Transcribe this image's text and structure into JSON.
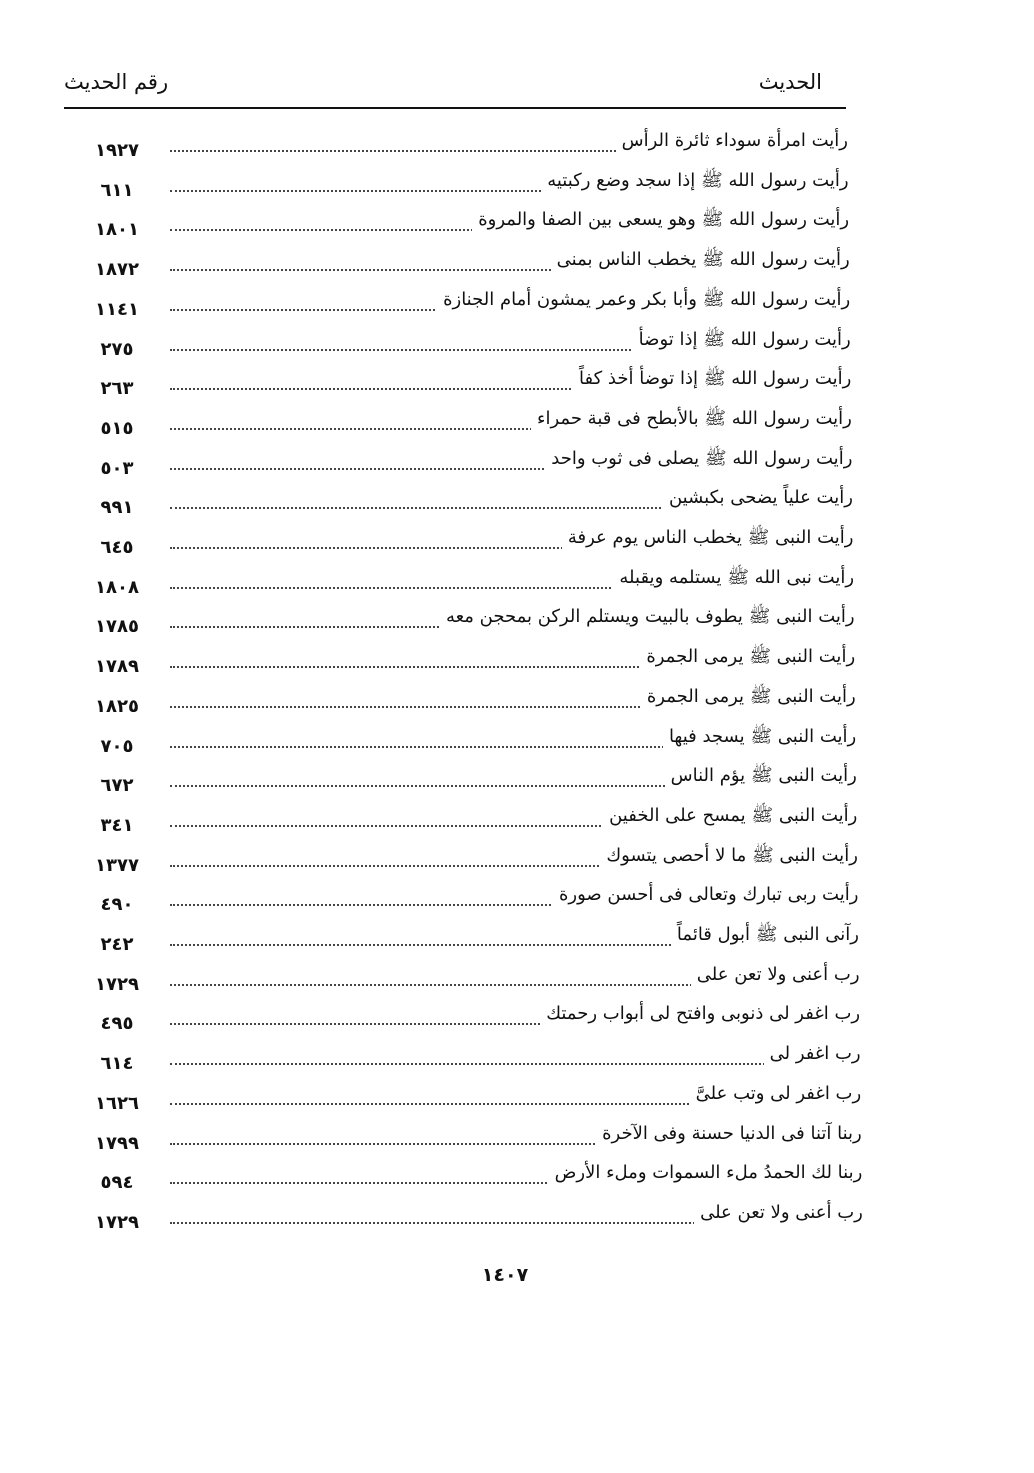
{
  "header": {
    "hadith_label": "الحديث",
    "number_label": "رقم الحديث"
  },
  "entries": [
    {
      "text": "رأيت امرأة سوداء ثائرة الرأس",
      "number": "١٩٢٧"
    },
    {
      "text": "رأيت رسول الله ﷺ إذا سجد وضع ركبتيه",
      "number": "٦١١"
    },
    {
      "text": "رأيت رسول الله ﷺ وهو يسعى بين الصفا والمروة",
      "number": "١٨٠١"
    },
    {
      "text": "رأيت رسول الله ﷺ يخطب الناس بمنى",
      "number": "١٨٧٢"
    },
    {
      "text": "رأيت رسول الله ﷺ وأبا بكر وعمر يمشون أمام الجنازة",
      "number": "١١٤١"
    },
    {
      "text": "رأيت رسول الله ﷺ إذا توضأ",
      "number": "٢٧٥"
    },
    {
      "text": "رأيت رسول الله ﷺ إذا توضأ أخذ كفاً",
      "number": "٢٦٣"
    },
    {
      "text": "رأيت رسول الله ﷺ بالأبطح فى قبة حمراء",
      "number": "٥١٥"
    },
    {
      "text": "رأيت رسول الله ﷺ يصلى فى ثوب واحد",
      "number": "٥٠٣"
    },
    {
      "text": "رأيت علياً يضحى بكبشين",
      "number": "٩٩١"
    },
    {
      "text": "رأيت النبى ﷺ يخطب الناس يوم عرفة",
      "number": "٦٤٥"
    },
    {
      "text": "رأيت نبى الله ﷺ يستلمه ويقبله",
      "number": "١٨٠٨"
    },
    {
      "text": "رأيت النبى ﷺ يطوف بالبيت ويستلم الركن بمحجن معه",
      "number": "١٧٨٥"
    },
    {
      "text": "رأيت النبى ﷺ يرمى الجمرة",
      "number": "١٧٨٩"
    },
    {
      "text": "رأيت النبى ﷺ يرمى الجمرة",
      "number": "١٨٢٥"
    },
    {
      "text": "رأيت النبى ﷺ يسجد فيها",
      "number": "٧٠٥"
    },
    {
      "text": "رأيت النبى ﷺ يؤم الناس",
      "number": "٦٧٢"
    },
    {
      "text": "رأيت النبى ﷺ يمسح على الخفين",
      "number": "٣٤١"
    },
    {
      "text": "رأيت النبى ﷺ ما لا أحصى يتسوك",
      "number": "١٣٧٧"
    },
    {
      "text": "رأيت ربى تبارك وتعالى فى أحسن صورة",
      "number": "٤٩٠"
    },
    {
      "text": "رآنى النبى ﷺ أبول قائماً",
      "number": "٢٤٢"
    },
    {
      "text": "رب أعنى ولا تعن على",
      "number": "١٧٢٩"
    },
    {
      "text": "رب اغفر لى ذنوبى وافتح لى أبواب رحمتك",
      "number": "٤٩٥"
    },
    {
      "text": "رب اغفر لى",
      "number": "٦١٤"
    },
    {
      "text": "رب اغفر لى وتب علىَّ",
      "number": "١٦٢٦"
    },
    {
      "text": "ربنا آتنا فى الدنيا حسنة وفى الآخرة",
      "number": "١٧٩٩"
    },
    {
      "text": "ربنا لك الحمدُ ملء السموات وملء الأرض",
      "number": "٥٩٤"
    },
    {
      "text": "رب أعنى ولا تعن على",
      "number": "١٧٢٩"
    }
  ],
  "footer": {
    "page_number": "١٤٠٧"
  }
}
